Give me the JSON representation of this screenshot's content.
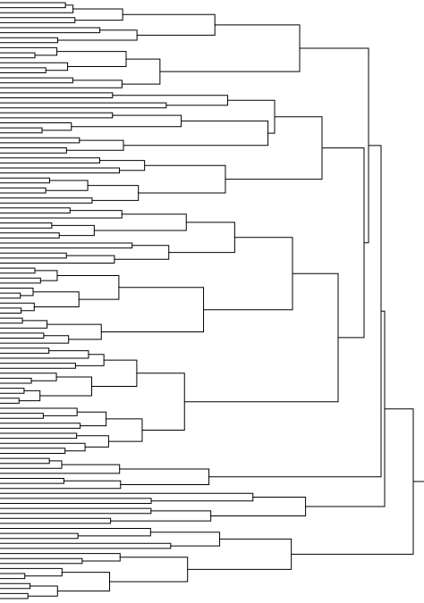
{
  "diagram": {
    "type": "dendrogram",
    "orientation": "left-to-right",
    "leaf_count": 120,
    "labels_visible": false,
    "colors": {
      "background": "#ffffff",
      "line": "#000000"
    }
  }
}
